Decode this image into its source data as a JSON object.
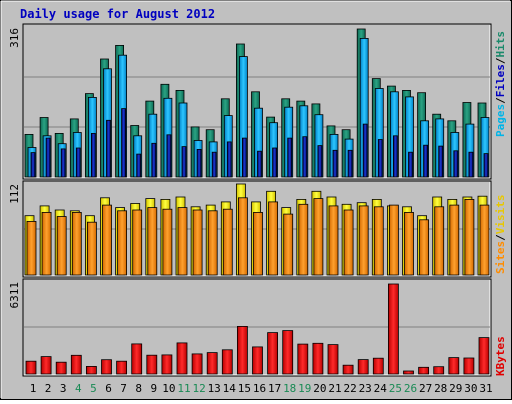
{
  "chart_data": {
    "type": "bar",
    "title": "Daily usage for August 2012",
    "categories": [
      "1",
      "2",
      "3",
      "4",
      "5",
      "6",
      "7",
      "8",
      "9",
      "10",
      "11",
      "12",
      "13",
      "14",
      "15",
      "16",
      "17",
      "18",
      "19",
      "20",
      "21",
      "22",
      "23",
      "24",
      "25",
      "26",
      "27",
      "28",
      "29",
      "30",
      "31"
    ],
    "weekend_days": [
      "4",
      "5",
      "11",
      "12",
      "18",
      "19",
      "25",
      "26"
    ],
    "panels": [
      {
        "id": "hits-files-pages",
        "ylim": [
          0,
          316
        ],
        "ymax_label": "316",
        "side_labels": [
          "Pages",
          "/",
          "Files",
          "/",
          "Hits"
        ],
        "series": [
          {
            "name": "Hits",
            "values": [
              91,
              127,
              93,
              124,
              178,
              252,
              281,
              110,
              162,
              198,
              185,
              107,
              101,
              167,
              284,
              182,
              128,
              167,
              162,
              156,
              109,
              101,
              316,
              210,
              194,
              185,
              180,
              134,
              120,
              159,
              158
            ]
          },
          {
            "name": "Files",
            "values": [
              63,
              88,
              71,
              95,
              170,
              231,
              260,
              88,
              134,
              168,
              158,
              78,
              75,
              131,
              257,
              147,
              116,
              149,
              152,
              133,
              91,
              81,
              296,
              189,
              182,
              171,
              120,
              124,
              95,
              113,
              127
            ]
          },
          {
            "name": "Pages",
            "values": [
              52,
              83,
              60,
              62,
              93,
              121,
              146,
              49,
              72,
              90,
              65,
              59,
              53,
              75,
              83,
              55,
              62,
              83,
              86,
              67,
              57,
              57,
              113,
              80,
              88,
              53,
              68,
              66,
              56,
              53,
              50
            ]
          }
        ]
      },
      {
        "id": "visits-sites",
        "ylim": [
          0,
          112
        ],
        "ymax_label": "112",
        "side_labels": [
          "Sites",
          "/",
          "Visits"
        ],
        "series": [
          {
            "name": "Visits",
            "values": [
              73,
              85,
              80,
              79,
              73,
              95,
              83,
              88,
              94,
              93,
              96,
              84,
              86,
              90,
              112,
              90,
              103,
              83,
              93,
              103,
              96,
              87,
              89,
              93,
              85,
              84,
              73,
              96,
              93,
              96,
              97
            ]
          },
          {
            "name": "Sites",
            "values": [
              66,
              77,
              72,
              77,
              65,
              86,
              79,
              80,
              83,
              81,
              83,
              80,
              79,
              81,
              95,
              77,
              90,
              75,
              87,
              94,
              85,
              80,
              85,
              84,
              86,
              77,
              68,
              84,
              86,
              93,
              86
            ]
          }
        ]
      },
      {
        "id": "kbytes",
        "ylim": [
          0,
          6311
        ],
        "ymax_label": "6311",
        "side_labels": [
          "KBytes"
        ],
        "series": [
          {
            "name": "KBytes",
            "values": [
              900,
              1220,
              830,
              1310,
              530,
              1000,
              900,
              2110,
              1320,
              1340,
              2180,
              1410,
              1500,
              1700,
              3340,
              1900,
              2900,
              3040,
              2100,
              2150,
              2060,
              620,
              1010,
              1110,
              6311,
              210,
              470,
              510,
              1150,
              1120,
              2550
            ]
          }
        ]
      }
    ]
  }
}
